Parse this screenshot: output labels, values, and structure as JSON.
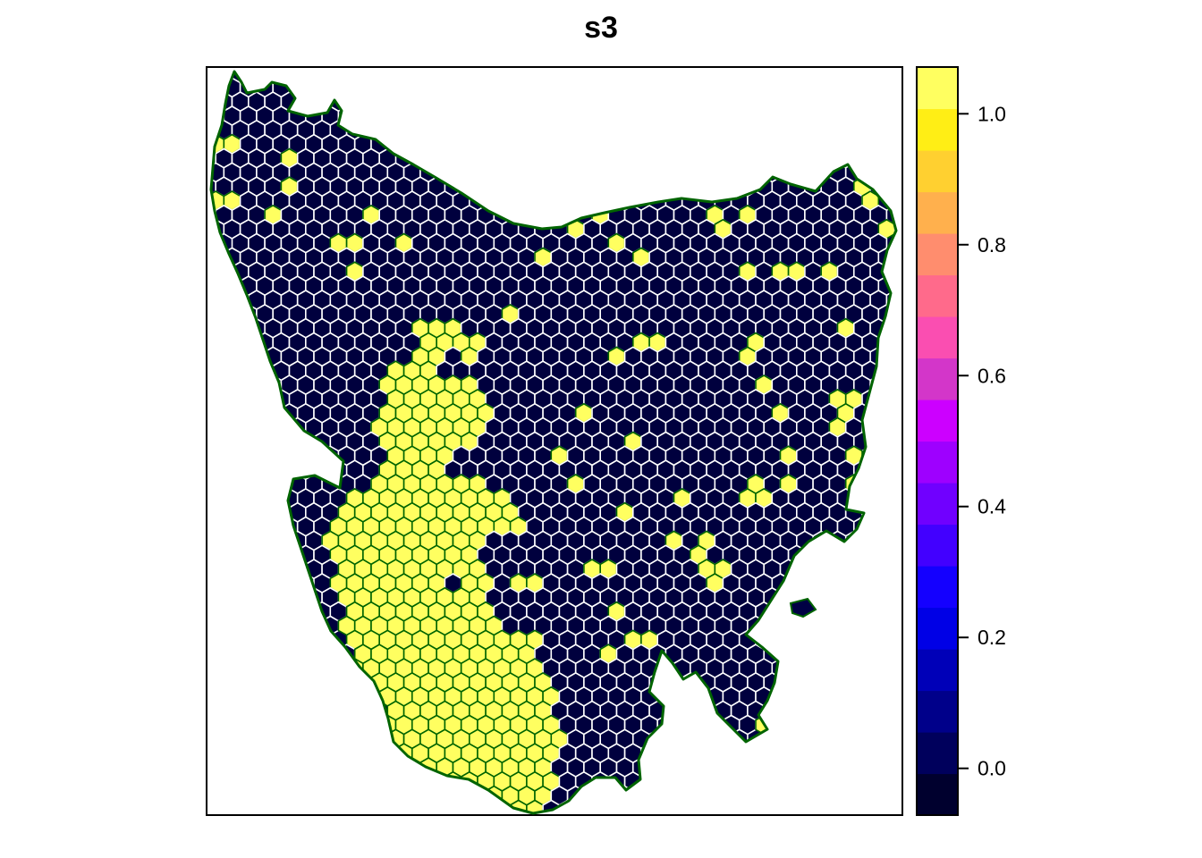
{
  "title": "s3",
  "colorbar": {
    "ticks": [
      {
        "value": 0.0,
        "label": "0.0"
      },
      {
        "value": 0.2,
        "label": "0.2"
      },
      {
        "value": 0.4,
        "label": "0.4"
      },
      {
        "value": 0.6,
        "label": "0.6"
      },
      {
        "value": 0.8,
        "label": "0.8"
      },
      {
        "value": 1.0,
        "label": "1.0"
      }
    ],
    "min": -0.0714,
    "max": 1.0714,
    "colors": [
      "#00002E",
      "#00005C",
      "#00008A",
      "#0000B8",
      "#0000E6",
      "#1400FF",
      "#4200FF",
      "#7000FF",
      "#9E00FF",
      "#CC00FF",
      "#D336C9",
      "#FA4EB1",
      "#FF6A8B",
      "#FF8D6E",
      "#FFB04D",
      "#FFD030",
      "#FFEE15",
      "#FFFF60"
    ]
  },
  "map": {
    "region": "Tasmania",
    "cell_shape": "hexagon",
    "land_color": "#000044",
    "low_fill": "#00003E",
    "high_fill": "#FFFF60",
    "cell_border_color": "#FFFFFF",
    "outline_color": "#006400",
    "value_range": [
      0,
      1
    ]
  }
}
